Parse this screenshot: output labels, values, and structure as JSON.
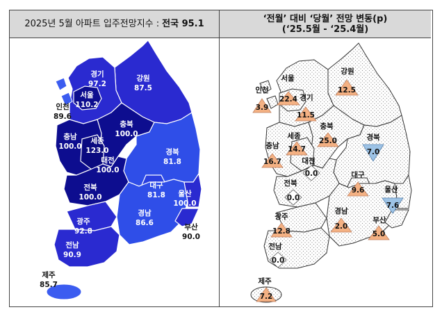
{
  "left_header": {
    "title": "2025년 5월 아파트 입주전망지수 :",
    "national": "전국 95.1"
  },
  "right_header": {
    "line1": "‘전월’ 대비 ‘당월’ 전망 변동(p)",
    "line2": "(‘25.5월 - ‘25.4월)"
  },
  "colors": {
    "dark": "#0a0a86",
    "mid": "#1f1fc2",
    "light": "#3b5cf0",
    "up": "#f4b183",
    "down": "#9dc3e6",
    "zero": "#ffffff"
  },
  "left_map": {
    "regions": [
      {
        "name": "경기",
        "value": "97.2"
      },
      {
        "name": "서울",
        "value": "110.2"
      },
      {
        "name": "인천",
        "value": "89.6"
      },
      {
        "name": "강원",
        "value": "87.5"
      },
      {
        "name": "충북",
        "value": "100.0"
      },
      {
        "name": "충남",
        "value": "100.0"
      },
      {
        "name": "세종",
        "value": "123.0"
      },
      {
        "name": "대전",
        "value": "100.0"
      },
      {
        "name": "경북",
        "value": "81.8"
      },
      {
        "name": "대구",
        "value": "81.8"
      },
      {
        "name": "울산",
        "value": "100.0"
      },
      {
        "name": "전북",
        "value": "100.0"
      },
      {
        "name": "광주",
        "value": "92.8"
      },
      {
        "name": "경남",
        "value": "86.6"
      },
      {
        "name": "부산",
        "value": "90.0"
      },
      {
        "name": "전남",
        "value": "90.9"
      },
      {
        "name": "제주",
        "value": "85.7"
      }
    ]
  },
  "right_map": {
    "regions": [
      {
        "name": "서울",
        "change": "22.4",
        "direction": "up"
      },
      {
        "name": "강원",
        "change": "12.5",
        "direction": "up"
      },
      {
        "name": "인천",
        "change": "3.9",
        "direction": "up"
      },
      {
        "name": "경기",
        "change": "11.5",
        "direction": "up"
      },
      {
        "name": "세종",
        "change": "14.7",
        "direction": "up"
      },
      {
        "name": "충북",
        "change": "25.0",
        "direction": "up"
      },
      {
        "name": "경북",
        "change": "7.0",
        "direction": "down"
      },
      {
        "name": "충남",
        "change": "16.7",
        "direction": "up"
      },
      {
        "name": "대전",
        "change": "0.0",
        "direction": "none"
      },
      {
        "name": "대구",
        "change": "9.6",
        "direction": "up"
      },
      {
        "name": "울산",
        "change": "7.6",
        "direction": "down"
      },
      {
        "name": "전북",
        "change": "0.0",
        "direction": "none"
      },
      {
        "name": "광주",
        "change": "12.8",
        "direction": "up"
      },
      {
        "name": "경남",
        "change": "2.0",
        "direction": "up"
      },
      {
        "name": "부산",
        "change": "5.0",
        "direction": "up"
      },
      {
        "name": "전남",
        "change": "0.0",
        "direction": "none"
      },
      {
        "name": "제주",
        "change": "7.2",
        "direction": "up"
      }
    ]
  }
}
